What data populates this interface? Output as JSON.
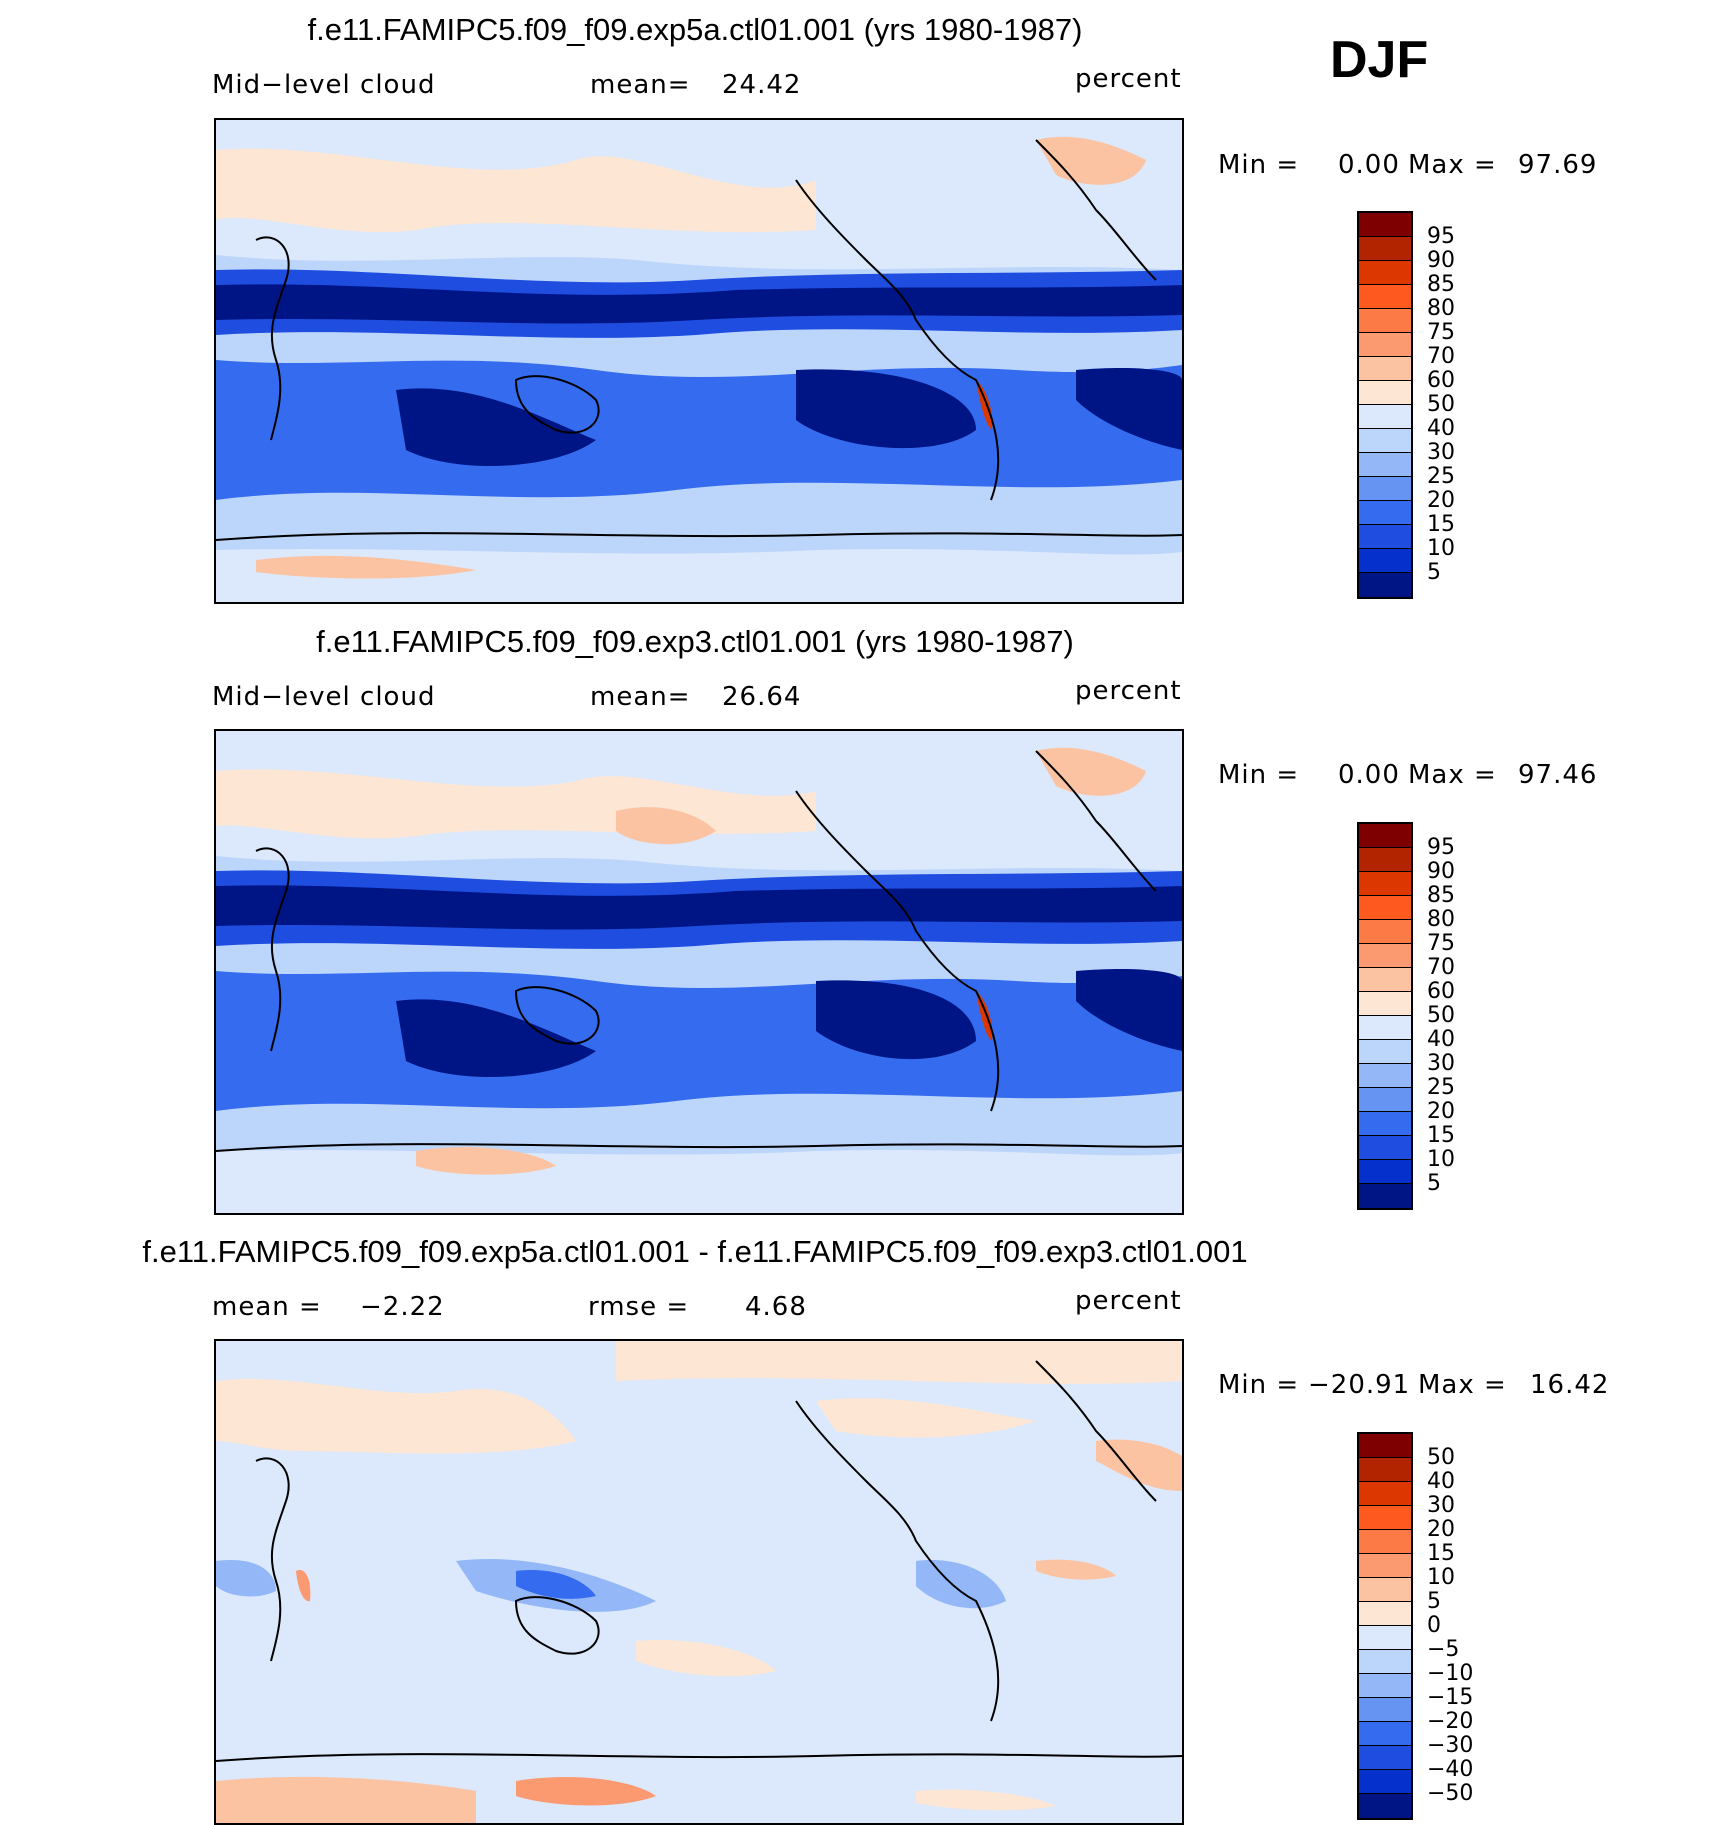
{
  "header": {
    "season": "DJF"
  },
  "panels": [
    {
      "title": "f.e11.FAMIPC5.f09_f09.exp5a.ctl01.001 (yrs 1980-1987)",
      "left_label": "Mid−level cloud",
      "stat_label": "mean=",
      "stat_value": "24.42",
      "units": "percent",
      "min_label": "Min =",
      "min_value": "0.00",
      "max_label": "Max =",
      "max_value": "97.69"
    },
    {
      "title": "f.e11.FAMIPC5.f09_f09.exp3.ctl01.001 (yrs 1980-1987)",
      "left_label": "Mid−level cloud",
      "stat_label": "mean=",
      "stat_value": "26.64",
      "units": "percent",
      "min_label": "Min =",
      "min_value": "0.00",
      "max_label": "Max =",
      "max_value": "97.46"
    },
    {
      "title": "f.e11.FAMIPC5.f09_f09.exp5a.ctl01.001 - f.e11.FAMIPC5.f09_f09.exp3.ctl01.001",
      "left_label": "mean =",
      "left_value": "−2.22",
      "stat_label": "rmse =",
      "stat_value": "4.68",
      "units": "percent",
      "min_label": "Min =",
      "min_value": "−20.91",
      "max_label": "Max =",
      "max_value": "16.42"
    }
  ],
  "chart_data": [
    {
      "type": "heatmap",
      "variable": "Mid-level cloud",
      "units": "percent",
      "mean": 24.42,
      "min": 0.0,
      "max": 97.69,
      "colorbar_levels": [
        "95",
        "90",
        "85",
        "80",
        "75",
        "70",
        "60",
        "50",
        "40",
        "30",
        "25",
        "20",
        "15",
        "10",
        "5"
      ],
      "colorbar_colors": [
        "#7f0000",
        "#b22400",
        "#dd3700",
        "#fe5a1f",
        "#fc7a45",
        "#fb9a70",
        "#fcc3a3",
        "#fde6d3",
        "#dce8fb",
        "#bcd5fa",
        "#93b7f7",
        "#6594f3",
        "#356cef",
        "#1e4de0",
        "#0630cc",
        "#001585"
      ]
    },
    {
      "type": "heatmap",
      "variable": "Mid-level cloud",
      "units": "percent",
      "mean": 26.64,
      "min": 0.0,
      "max": 97.46,
      "colorbar_levels": [
        "95",
        "90",
        "85",
        "80",
        "75",
        "70",
        "60",
        "50",
        "40",
        "30",
        "25",
        "20",
        "15",
        "10",
        "5"
      ],
      "colorbar_colors": [
        "#7f0000",
        "#b22400",
        "#dd3700",
        "#fe5a1f",
        "#fc7a45",
        "#fb9a70",
        "#fcc3a3",
        "#fde6d3",
        "#dce8fb",
        "#bcd5fa",
        "#93b7f7",
        "#6594f3",
        "#356cef",
        "#1e4de0",
        "#0630cc",
        "#001585"
      ]
    },
    {
      "type": "heatmap",
      "units": "percent",
      "mean": -2.22,
      "rmse": 4.68,
      "min": -20.91,
      "max": 16.42,
      "colorbar_levels": [
        "50",
        "40",
        "30",
        "20",
        "15",
        "10",
        "5",
        "0",
        "−5",
        "−10",
        "−15",
        "−20",
        "−30",
        "−40",
        "−50"
      ],
      "colorbar_colors": [
        "#7f0000",
        "#b22400",
        "#dd3700",
        "#fe5a1f",
        "#fc7a45",
        "#fb9a70",
        "#fcc3a3",
        "#fde6d3",
        "#dce8fb",
        "#bcd5fa",
        "#93b7f7",
        "#6594f3",
        "#356cef",
        "#1e4de0",
        "#0630cc",
        "#001585"
      ]
    }
  ]
}
